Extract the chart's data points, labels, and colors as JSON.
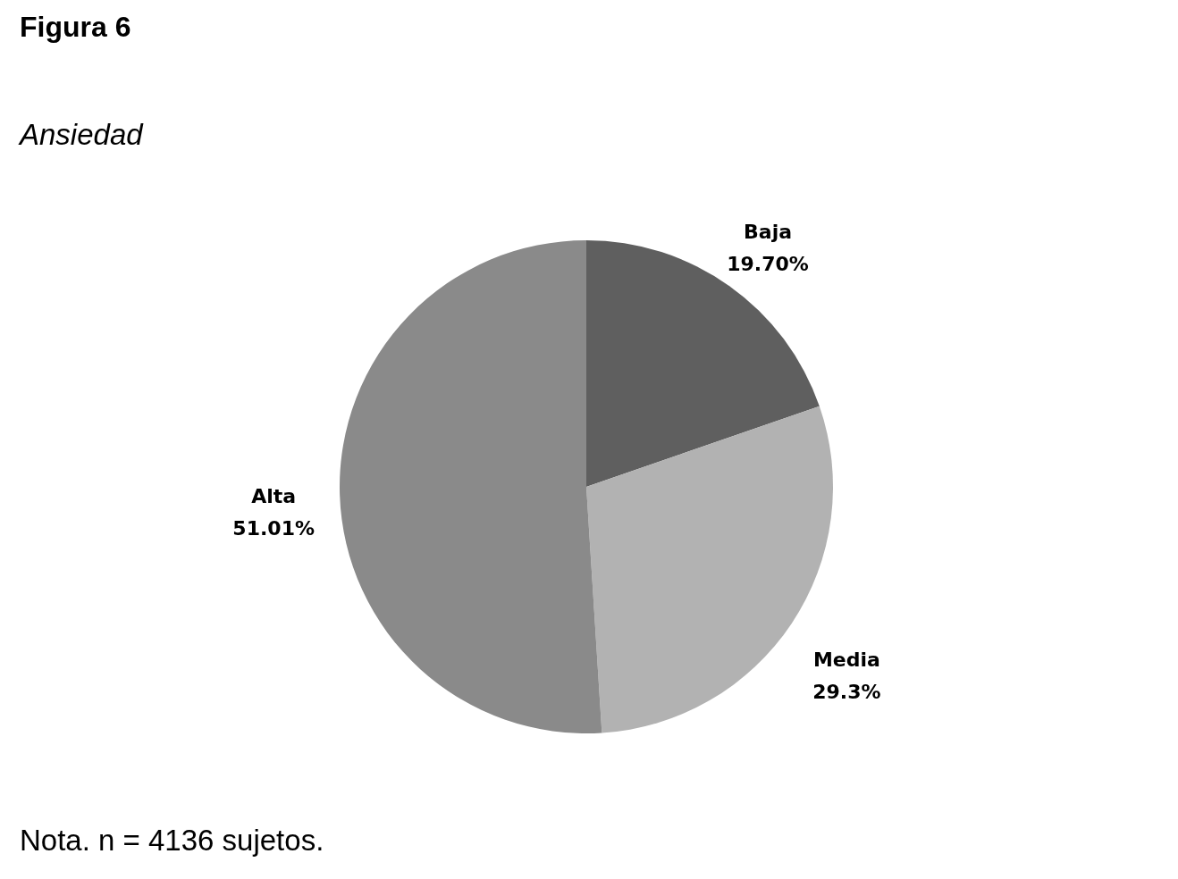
{
  "chart_data": {
    "type": "pie",
    "title": "Figura 6",
    "subtitle": "Ansiedad",
    "categories": [
      "Baja",
      "Media",
      "Alta"
    ],
    "values": [
      19.7,
      29.3,
      51.01
    ],
    "colors": [
      "#5f5f5f",
      "#b2b2b2",
      "#8a8a8a"
    ],
    "value_labels": [
      "19.70%",
      "29.3%",
      "51.01%"
    ],
    "annotations": [
      "Nota. n = 4136 sujetos."
    ]
  }
}
